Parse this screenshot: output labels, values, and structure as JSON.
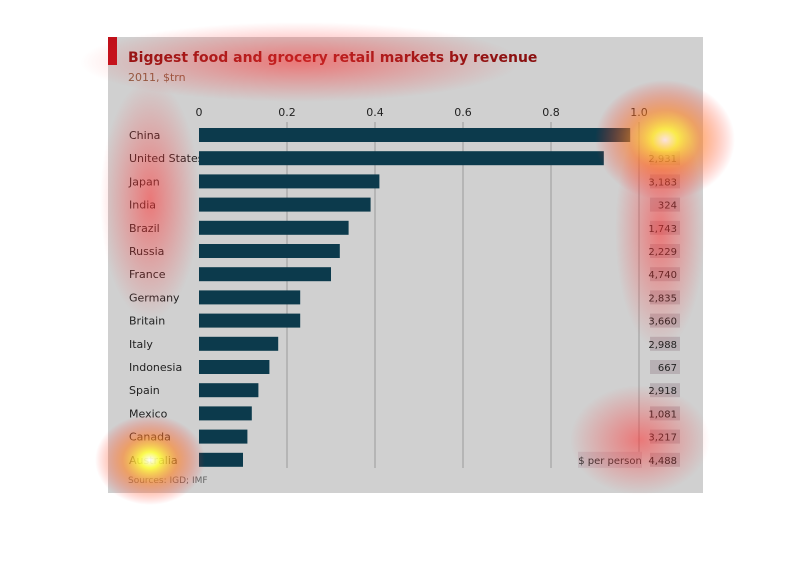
{
  "chart_data": {
    "type": "bar",
    "orientation": "horizontal",
    "title": "Biggest food and grocery retail markets by revenue",
    "subtitle": "2011, $trn",
    "source": "Sources: IGD; IMF",
    "categories": [
      "China",
      "United States",
      "Japan",
      "India",
      "Brazil",
      "Russia",
      "France",
      "Germany",
      "Britain",
      "Italy",
      "Indonesia",
      "Spain",
      "Mexico",
      "Canada",
      "Australia"
    ],
    "values": [
      0.98,
      0.92,
      0.41,
      0.39,
      0.34,
      0.32,
      0.3,
      0.23,
      0.23,
      0.18,
      0.16,
      0.135,
      0.12,
      0.11,
      0.1
    ],
    "xlim": [
      0,
      1.0
    ],
    "xticks": [
      "0",
      "0.2",
      "0.4",
      "0.6",
      "0.8",
      "1.0"
    ],
    "grid": true,
    "per_person": {
      "title": "$ per person",
      "values": [
        "",
        "2,931",
        "3,183",
        "324",
        "1,743",
        "2,229",
        "4,740",
        "2,835",
        "3,660",
        "2,988",
        "667",
        "2,918",
        "1,081",
        "3,217",
        "4,488"
      ]
    },
    "colors": {
      "bar": "#0c3a4c",
      "title": "#8a1010",
      "panel": "#d0d0d0",
      "accent": "#c0101a"
    }
  }
}
